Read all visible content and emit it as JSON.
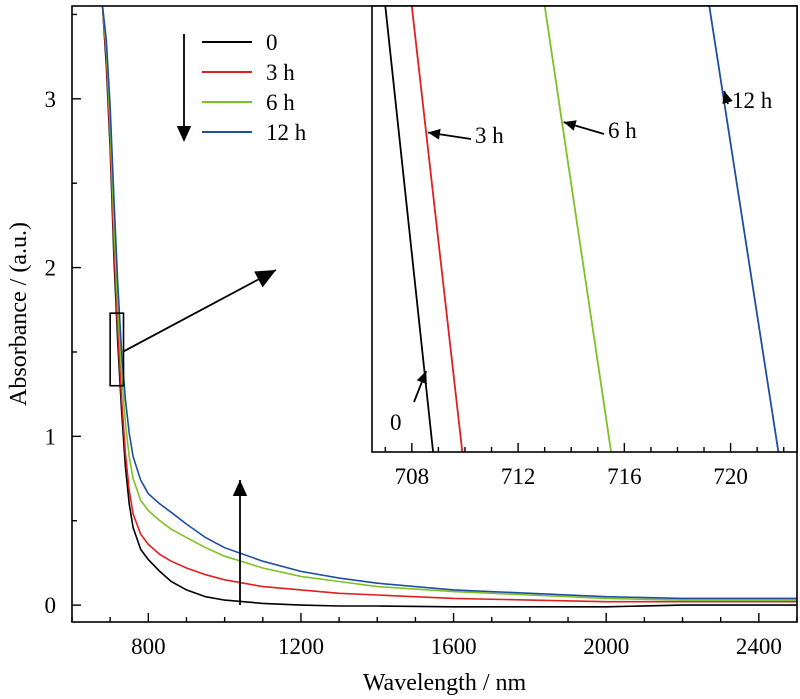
{
  "chart_data": [
    {
      "type": "line",
      "xlabel": "Wavelength / nm",
      "ylabel": "Absorbance / (a.u.)",
      "xlim": [
        600,
        2500
      ],
      "ylim": [
        -0.1,
        3.55
      ],
      "xticks": [
        800,
        1200,
        1600,
        2000,
        2400
      ],
      "yticks": [
        0,
        1,
        2,
        3
      ],
      "legend_position": "top-left",
      "legend_arrow": "down",
      "series": [
        {
          "name": "0",
          "color": "#000000",
          "x": [
            680,
            690,
            700,
            710,
            720,
            730,
            740,
            750,
            760,
            780,
            800,
            830,
            860,
            900,
            950,
            1000,
            1100,
            1200,
            1300,
            1400,
            1600,
            1800,
            2000,
            2200,
            2400,
            2500
          ],
          "y": [
            3.55,
            3.2,
            2.7,
            2.05,
            1.55,
            1.15,
            0.82,
            0.6,
            0.46,
            0.33,
            0.27,
            0.2,
            0.14,
            0.09,
            0.05,
            0.03,
            0.01,
            0.0,
            -0.005,
            -0.005,
            -0.01,
            -0.01,
            -0.01,
            0.0,
            0.0,
            0.0
          ]
        },
        {
          "name": "3 h",
          "color": "#e02020",
          "x": [
            680,
            690,
            700,
            710,
            720,
            730,
            740,
            750,
            760,
            780,
            800,
            830,
            860,
            900,
            950,
            1000,
            1100,
            1200,
            1300,
            1400,
            1600,
            1800,
            2000,
            2200,
            2400,
            2500
          ],
          "y": [
            3.55,
            3.25,
            2.75,
            2.12,
            1.62,
            1.22,
            0.9,
            0.68,
            0.54,
            0.42,
            0.36,
            0.3,
            0.26,
            0.22,
            0.18,
            0.15,
            0.11,
            0.09,
            0.07,
            0.06,
            0.04,
            0.03,
            0.02,
            0.02,
            0.02,
            0.02
          ]
        },
        {
          "name": "6 h",
          "color": "#7dc225",
          "x": [
            680,
            690,
            700,
            710,
            720,
            730,
            740,
            750,
            760,
            780,
            800,
            830,
            860,
            900,
            950,
            1000,
            1100,
            1200,
            1300,
            1400,
            1600,
            1800,
            2000,
            2200,
            2400,
            2500
          ],
          "y": [
            3.55,
            3.3,
            2.85,
            2.25,
            1.75,
            1.38,
            1.08,
            0.88,
            0.75,
            0.62,
            0.56,
            0.5,
            0.45,
            0.4,
            0.34,
            0.29,
            0.22,
            0.17,
            0.14,
            0.11,
            0.08,
            0.06,
            0.04,
            0.03,
            0.03,
            0.03
          ]
        },
        {
          "name": "12 h",
          "color": "#1f4e9e",
          "x": [
            680,
            690,
            700,
            710,
            720,
            730,
            740,
            750,
            760,
            780,
            800,
            830,
            860,
            900,
            950,
            1000,
            1100,
            1200,
            1300,
            1400,
            1600,
            1800,
            2000,
            2200,
            2400,
            2500
          ],
          "y": [
            3.55,
            3.35,
            2.95,
            2.4,
            1.9,
            1.5,
            1.22,
            1.02,
            0.88,
            0.74,
            0.66,
            0.6,
            0.55,
            0.48,
            0.4,
            0.34,
            0.26,
            0.2,
            0.16,
            0.13,
            0.09,
            0.07,
            0.05,
            0.04,
            0.04,
            0.04
          ]
        }
      ],
      "annotation_arrow": "up",
      "zoom_box": {
        "x0": 700,
        "x1": 735,
        "y0": 1.3,
        "y1": 1.73
      }
    },
    {
      "type": "line",
      "role": "inset",
      "xlim": [
        706.5,
        722.5
      ],
      "ylim": [
        1.3,
        1.73
      ],
      "xticks": [
        708,
        712,
        716,
        720
      ],
      "series": [
        {
          "name": "0",
          "color": "#000000",
          "x": [
            707.0,
            708.8
          ],
          "y": [
            1.73,
            1.3
          ]
        },
        {
          "name": "3 h",
          "color": "#e02020",
          "x": [
            708.0,
            709.9
          ],
          "y": [
            1.73,
            1.3
          ]
        },
        {
          "name": "6 h",
          "color": "#7dc225",
          "x": [
            713.0,
            715.5
          ],
          "y": [
            1.73,
            1.3
          ]
        },
        {
          "name": "12 h",
          "color": "#1f4e9e",
          "x": [
            719.2,
            721.8
          ],
          "y": [
            1.73,
            1.3
          ]
        }
      ],
      "labels": [
        {
          "text": "0",
          "target_series": 0
        },
        {
          "text": "3 h",
          "target_series": 1
        },
        {
          "text": "6 h",
          "target_series": 2
        },
        {
          "text": "12 h",
          "target_series": 3
        }
      ]
    }
  ]
}
